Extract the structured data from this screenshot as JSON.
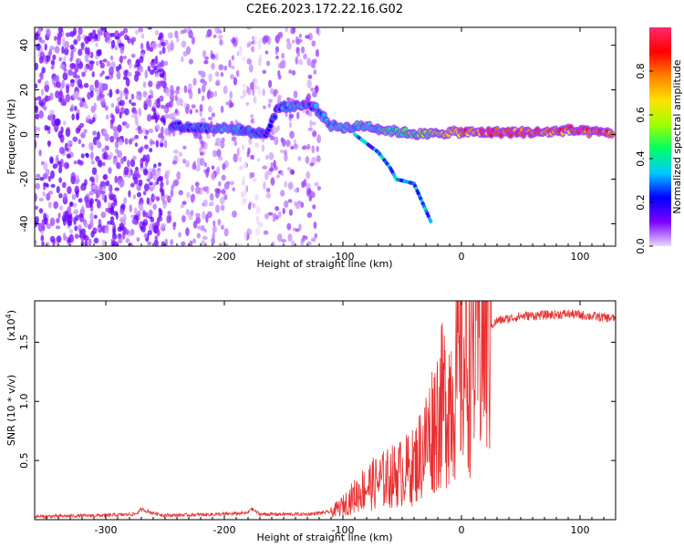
{
  "title": "C2E6.2023.172.22.16.G02",
  "chart_data": [
    {
      "type": "heatmap",
      "title": "C2E6.2023.172.22.16.G02",
      "xlabel": "Height of straight line (km)",
      "ylabel": "Frequency (Hz)",
      "xlim": [
        -360,
        130
      ],
      "ylim": [
        -50,
        48
      ],
      "x_ticks": [
        -300,
        -200,
        -100,
        0,
        100
      ],
      "y_ticks": [
        -40,
        -20,
        0,
        20,
        40
      ],
      "colorbar": {
        "label": "Normalized spectral amplitude",
        "range": [
          0,
          1
        ],
        "ticks": [
          0.0,
          0.2,
          0.4,
          0.6,
          0.8
        ],
        "colormap": [
          "#e9d8ff",
          "#7b00ff",
          "#0000ff",
          "#00c8ff",
          "#00ff66",
          "#a0ff00",
          "#ffe000",
          "#ff8000",
          "#ff0000",
          "#ff2a6e"
        ]
      },
      "noise_regions": [
        {
          "x_from": -360,
          "x_to": -250,
          "density": 0.85
        },
        {
          "x_from": -250,
          "x_to": -120,
          "density": 0.45
        }
      ],
      "signal_track": [
        {
          "x": -245,
          "y": 4,
          "amp": 0.25
        },
        {
          "x": -225,
          "y": 3,
          "amp": 0.3
        },
        {
          "x": -205,
          "y": 3,
          "amp": 0.35
        },
        {
          "x": -185,
          "y": 2,
          "amp": 0.3
        },
        {
          "x": -165,
          "y": 0,
          "amp": 0.25
        },
        {
          "x": -155,
          "y": 12,
          "amp": 0.3
        },
        {
          "x": -140,
          "y": 13,
          "amp": 0.35
        },
        {
          "x": -125,
          "y": 13,
          "amp": 0.3
        },
        {
          "x": -110,
          "y": 4,
          "amp": 0.35
        },
        {
          "x": -95,
          "y": 3,
          "amp": 0.4
        },
        {
          "x": -80,
          "y": 4,
          "amp": 0.4
        },
        {
          "x": -65,
          "y": 2,
          "amp": 0.45
        },
        {
          "x": -50,
          "y": 1,
          "amp": 0.5
        },
        {
          "x": -30,
          "y": 0,
          "amp": 0.55
        },
        {
          "x": -10,
          "y": 1,
          "amp": 0.7
        },
        {
          "x": 10,
          "y": 1,
          "amp": 0.85
        },
        {
          "x": 30,
          "y": 1,
          "amp": 0.95
        },
        {
          "x": 50,
          "y": 1,
          "amp": 0.95
        },
        {
          "x": 70,
          "y": 1,
          "amp": 0.85
        },
        {
          "x": 90,
          "y": 2,
          "amp": 0.9
        },
        {
          "x": 110,
          "y": 1,
          "amp": 0.95
        },
        {
          "x": 128,
          "y": 1,
          "amp": 0.8
        }
      ],
      "branch_track": [
        {
          "x": -90,
          "y": 0
        },
        {
          "x": -70,
          "y": -8
        },
        {
          "x": -60,
          "y": -15
        },
        {
          "x": -55,
          "y": -20
        },
        {
          "x": -40,
          "y": -22
        },
        {
          "x": -25,
          "y": -40
        }
      ]
    },
    {
      "type": "line",
      "xlabel": "Height of straight line (km)",
      "ylabel": "SNR (10 * v/v)",
      "y_multiplier": "(x10",
      "y_multiplier_exp": "4",
      "xlim": [
        -360,
        130
      ],
      "ylim": [
        0,
        1.85
      ],
      "x_ticks": [
        -300,
        -200,
        -100,
        0,
        100
      ],
      "y_ticks": [
        0.5,
        1.0,
        1.5
      ],
      "series": [
        {
          "color": "#e83030",
          "x": [
            -360,
            -300,
            -275,
            -270,
            -260,
            -250,
            -200,
            -180,
            -178,
            -170,
            -150,
            -130,
            -110,
            -100,
            -90,
            -80,
            -70,
            -60,
            -50,
            -40,
            -30,
            -20,
            -10,
            0,
            10,
            20,
            30,
            50,
            70,
            90,
            110,
            130
          ],
          "y": [
            0.02,
            0.03,
            0.04,
            0.08,
            0.05,
            0.03,
            0.04,
            0.05,
            0.09,
            0.04,
            0.04,
            0.04,
            0.06,
            0.12,
            0.2,
            0.28,
            0.32,
            0.36,
            0.4,
            0.45,
            0.65,
            0.9,
            1.05,
            1.3,
            1.45,
            1.6,
            1.68,
            1.72,
            1.73,
            1.74,
            1.72,
            1.7
          ]
        }
      ]
    }
  ]
}
